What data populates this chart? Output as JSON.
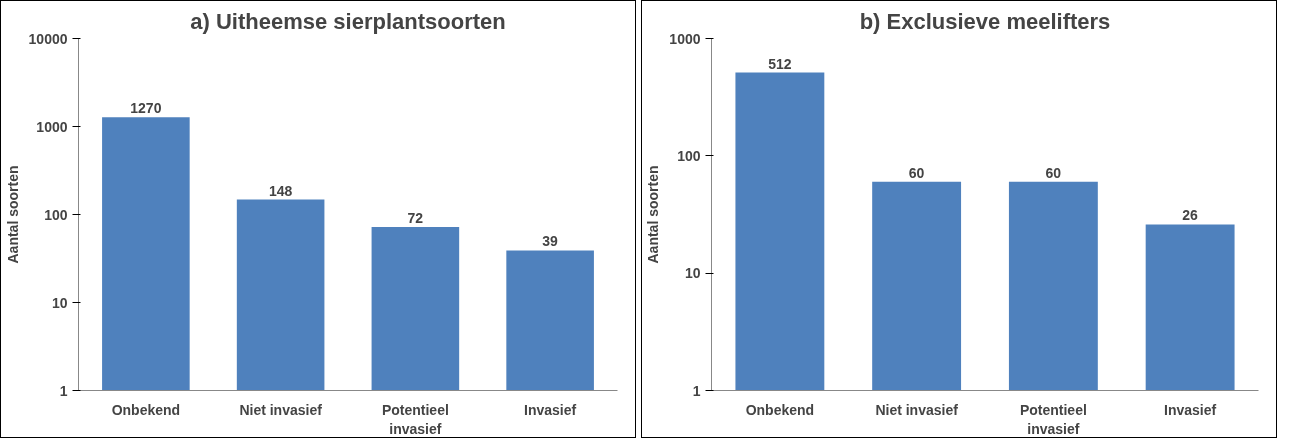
{
  "chart_data": [
    {
      "type": "bar",
      "title": "a) Uitheemse sierplantsoorten",
      "ylabel": "Aantal soorten",
      "categories": [
        "Onbekend",
        "Niet invasief",
        "Potentieel invasief",
        "Invasief"
      ],
      "values": [
        1270,
        148,
        72,
        39
      ],
      "color": "#4f81bd",
      "log": true,
      "ylim": [
        1,
        10000
      ],
      "yticks": [
        1,
        10,
        100,
        1000,
        10000
      ],
      "data_labels": true,
      "grid": false
    },
    {
      "type": "bar",
      "title": "b) Exclusieve meelifters",
      "ylabel": "Aantal soorten",
      "categories": [
        "Onbekend",
        "Niet invasief",
        "Potentieel invasief",
        "Invasief"
      ],
      "values": [
        512,
        60,
        60,
        26
      ],
      "color": "#4f81bd",
      "log": true,
      "ylim": [
        1,
        1000
      ],
      "yticks": [
        1,
        10,
        100,
        1000
      ],
      "data_labels": true,
      "grid": false
    }
  ]
}
